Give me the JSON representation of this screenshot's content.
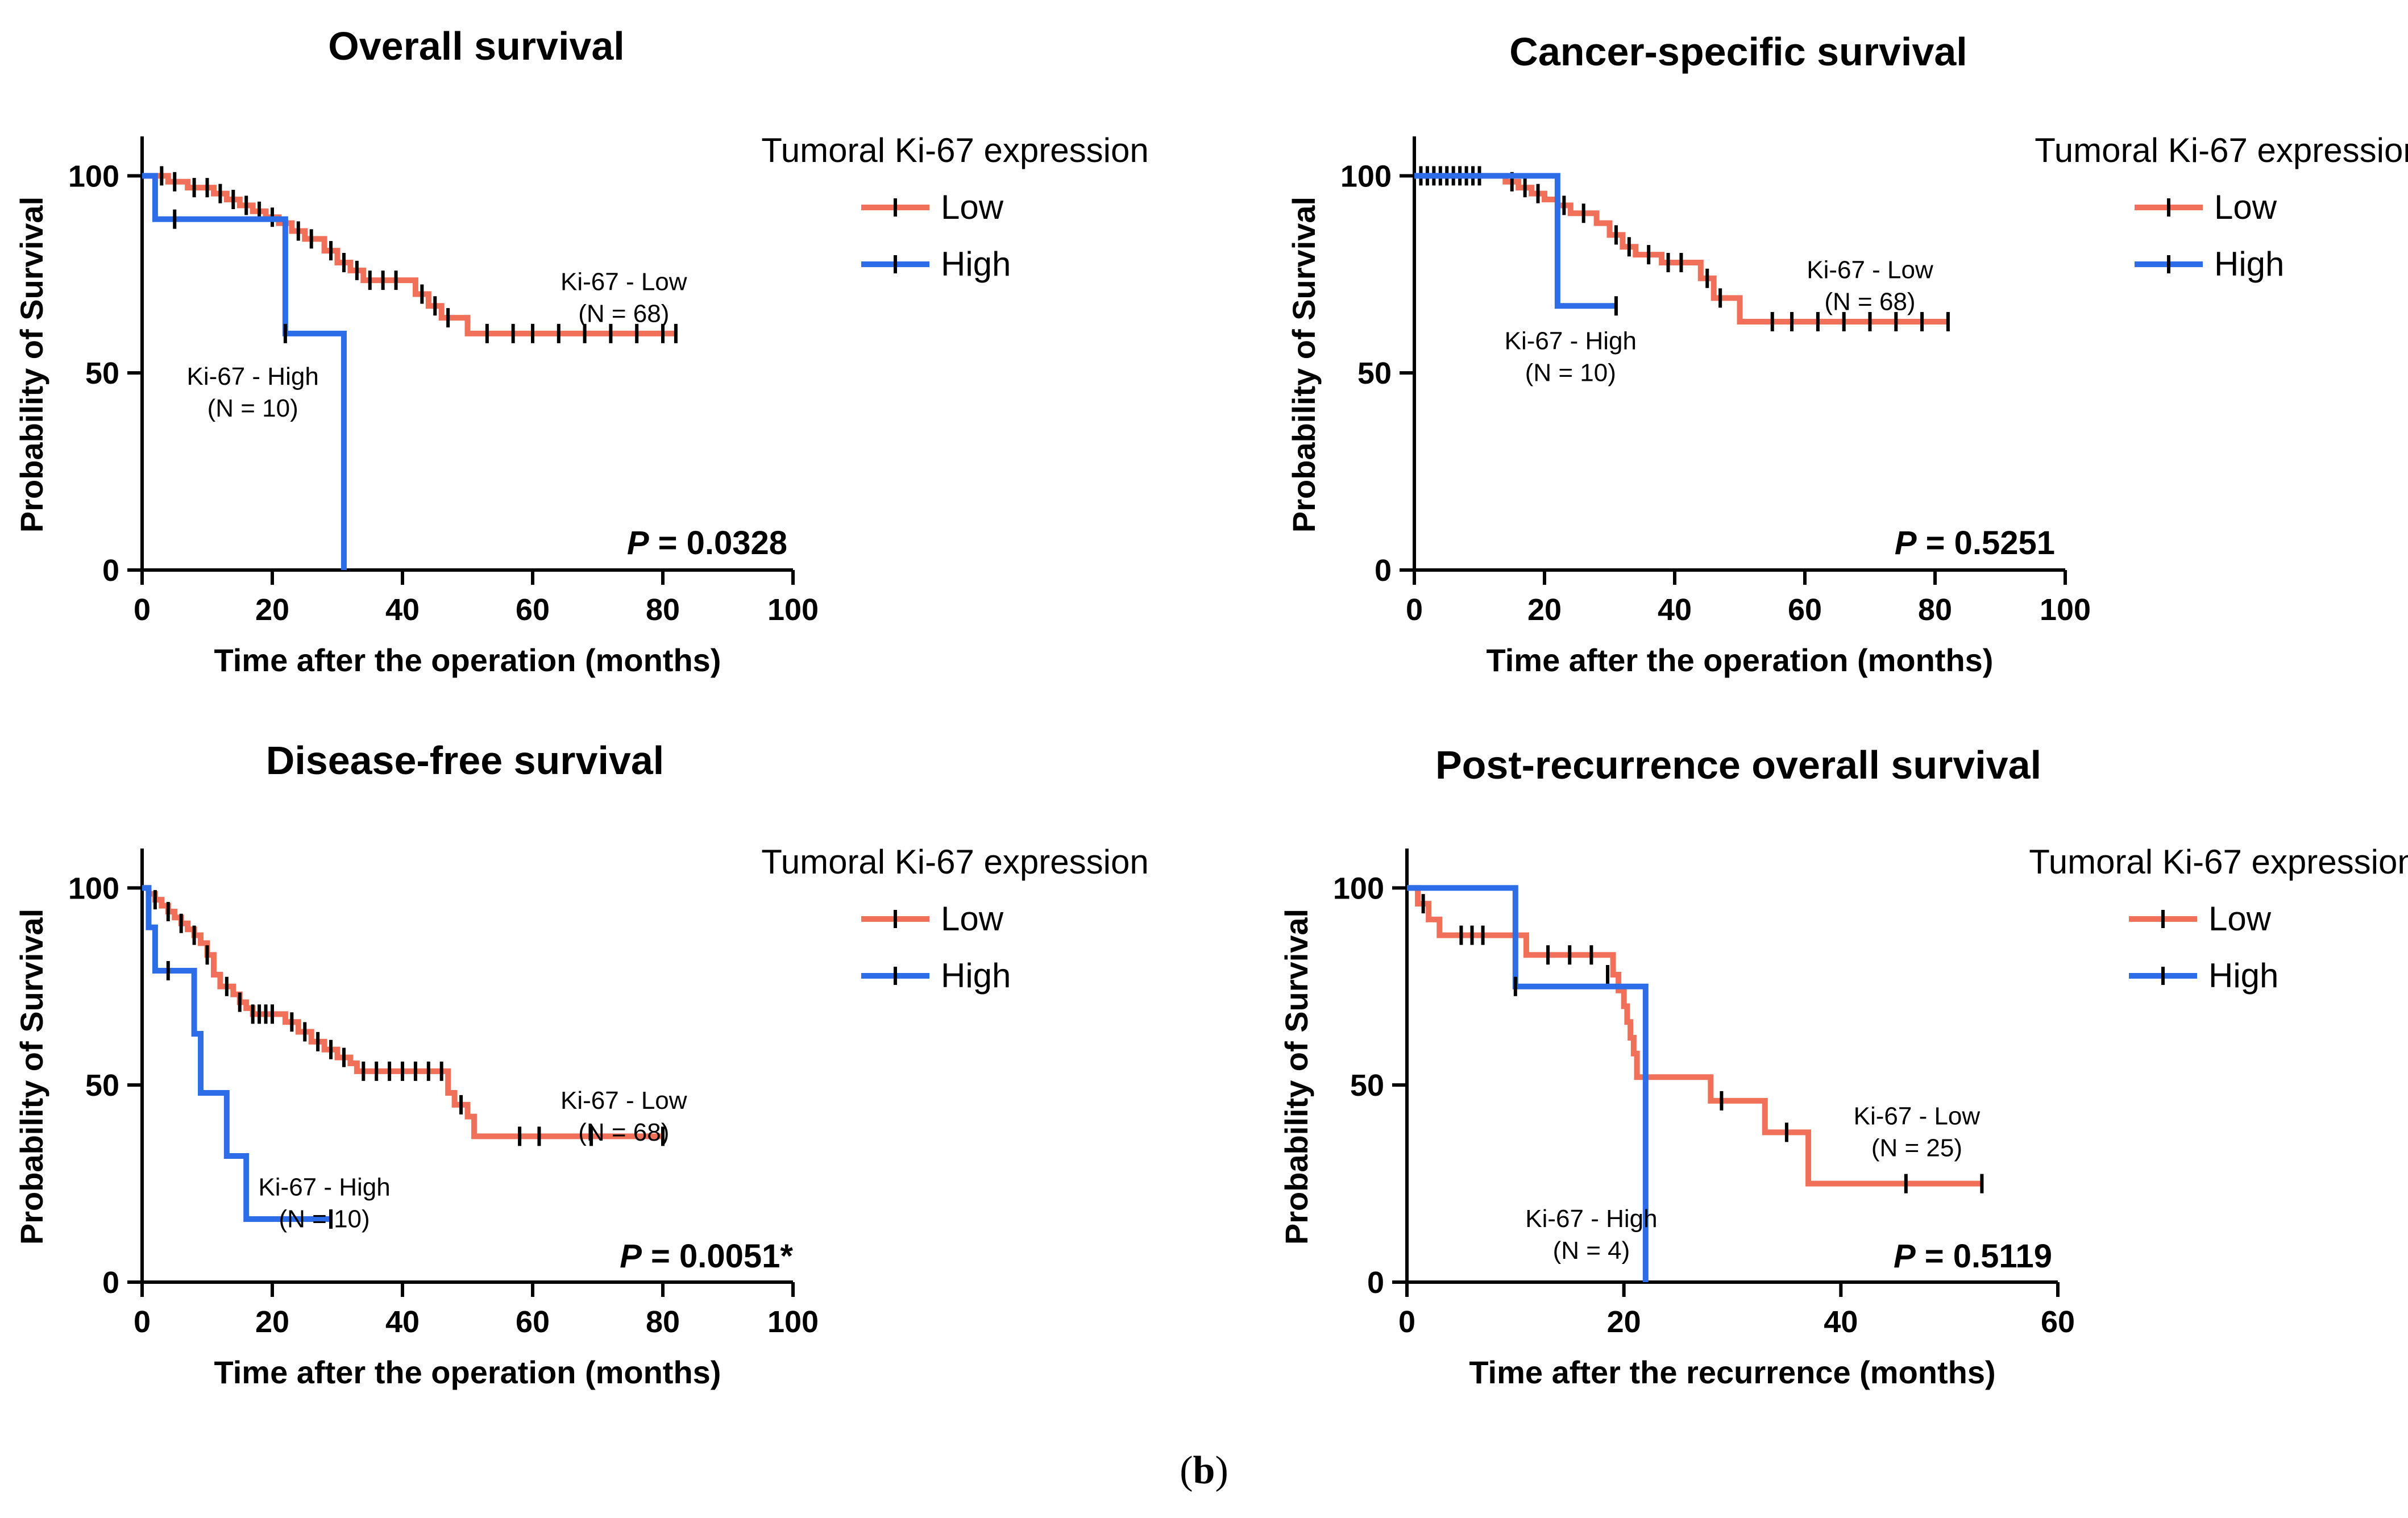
{
  "caption": {
    "open": "(",
    "letter": "b",
    "close": ")"
  },
  "colors": {
    "low": "#f0705a",
    "high": "#2d6ee8",
    "axis": "#000000",
    "censor": "#000000"
  },
  "chart_data": [
    {
      "type": "line",
      "subtype": "kaplan-meier",
      "title": "Overall survival",
      "xlabel": "Time after the operation (months)",
      "ylabel": "Probability of Survival",
      "xlim": [
        0,
        100
      ],
      "ylim": [
        0,
        110
      ],
      "xticks": [
        0,
        20,
        40,
        60,
        80,
        100
      ],
      "yticks": [
        0,
        50,
        100
      ],
      "legend": {
        "title": "Tumoral Ki-67 expression",
        "position": "top-right",
        "entries": [
          "Low",
          "High"
        ]
      },
      "p_value": {
        "label": "P",
        "value": "= 0.0328"
      },
      "series": [
        {
          "name": "Low",
          "key": "low",
          "steps": [
            [
              0,
              100
            ],
            [
              2,
              100
            ],
            [
              4,
              98.5
            ],
            [
              7,
              97
            ],
            [
              9,
              97
            ],
            [
              11,
              95.5
            ],
            [
              13,
              94
            ],
            [
              15,
              92.5
            ],
            [
              17,
              91
            ],
            [
              19,
              89.5
            ],
            [
              21,
              88
            ],
            [
              23,
              86
            ],
            [
              25,
              84
            ],
            [
              28,
              81
            ],
            [
              30,
              78
            ],
            [
              32,
              76
            ],
            [
              34,
              73.5
            ],
            [
              40,
              73.5
            ],
            [
              42,
              70
            ],
            [
              44,
              67
            ],
            [
              46,
              64
            ],
            [
              50,
              60
            ],
            [
              82,
              60
            ]
          ],
          "censors": [
            [
              3,
              100
            ],
            [
              5,
              98.5
            ],
            [
              8,
              97
            ],
            [
              10,
              97
            ],
            [
              12,
              95.5
            ],
            [
              14,
              94
            ],
            [
              16,
              92.5
            ],
            [
              18,
              91
            ],
            [
              20,
              89.5
            ],
            [
              24,
              86
            ],
            [
              26,
              84
            ],
            [
              29,
              81
            ],
            [
              31,
              78
            ],
            [
              33,
              76
            ],
            [
              35,
              73.5
            ],
            [
              37,
              73.5
            ],
            [
              39,
              73.5
            ],
            [
              43,
              70
            ],
            [
              45,
              67
            ],
            [
              47,
              64
            ],
            [
              53,
              60
            ],
            [
              57,
              60
            ],
            [
              60,
              60
            ],
            [
              64,
              60
            ],
            [
              68,
              60
            ],
            [
              72,
              60
            ],
            [
              76,
              60
            ],
            [
              80,
              60
            ],
            [
              82,
              60
            ]
          ],
          "label_lines": [
            "Ki-67 - Low",
            "(N = 68)"
          ],
          "label_pos": [
            74,
            71
          ]
        },
        {
          "name": "High",
          "key": "high",
          "steps": [
            [
              0,
              100
            ],
            [
              2,
              89
            ],
            [
              22,
              89
            ],
            [
              22,
              60
            ],
            [
              31,
              60
            ],
            [
              31,
              0
            ]
          ],
          "censors": [
            [
              5,
              89
            ],
            [
              22,
              60
            ]
          ],
          "label_lines": [
            "Ki-67 - High",
            "(N = 10)"
          ],
          "label_pos": [
            17,
            47
          ]
        }
      ]
    },
    {
      "type": "line",
      "subtype": "kaplan-meier",
      "title": "Cancer-specific survival",
      "xlabel": "Time after the operation (months)",
      "ylabel": "Probability of Survival",
      "xlim": [
        0,
        100
      ],
      "ylim": [
        0,
        110
      ],
      "xticks": [
        0,
        20,
        40,
        60,
        80,
        100
      ],
      "yticks": [
        0,
        50,
        100
      ],
      "legend": {
        "title": "Tumoral Ki-67 expression",
        "position": "top-right",
        "entries": [
          "Low",
          "High"
        ]
      },
      "p_value": {
        "label": "P",
        "value": "= 0.5251"
      },
      "series": [
        {
          "name": "Low",
          "key": "low",
          "steps": [
            [
              0,
              100
            ],
            [
              12,
              100
            ],
            [
              14,
              98.5
            ],
            [
              16,
              97
            ],
            [
              18,
              95.5
            ],
            [
              20,
              94
            ],
            [
              22,
              92.5
            ],
            [
              24,
              90.5
            ],
            [
              28,
              88
            ],
            [
              30,
              85
            ],
            [
              32,
              82
            ],
            [
              34,
              80
            ],
            [
              38,
              78
            ],
            [
              43,
              78
            ],
            [
              44,
              74
            ],
            [
              46,
              69
            ],
            [
              50,
              63
            ],
            [
              82,
              63
            ]
          ],
          "censors": [
            [
              1,
              100
            ],
            [
              2,
              100
            ],
            [
              3,
              100
            ],
            [
              4,
              100
            ],
            [
              5,
              100
            ],
            [
              6,
              100
            ],
            [
              7,
              100
            ],
            [
              8,
              100
            ],
            [
              9,
              100
            ],
            [
              10,
              100
            ],
            [
              15,
              98.5
            ],
            [
              17,
              97
            ],
            [
              19,
              95.5
            ],
            [
              23,
              92.5
            ],
            [
              26,
              90.5
            ],
            [
              31,
              85
            ],
            [
              33,
              82
            ],
            [
              36,
              80
            ],
            [
              39,
              78
            ],
            [
              41,
              78
            ],
            [
              45,
              74
            ],
            [
              47,
              69
            ],
            [
              55,
              63
            ],
            [
              58,
              63
            ],
            [
              62,
              63
            ],
            [
              66,
              63
            ],
            [
              70,
              63
            ],
            [
              74,
              63
            ],
            [
              78,
              63
            ],
            [
              82,
              63
            ]
          ],
          "label_lines": [
            "Ki-67 - Low",
            "(N = 68)"
          ],
          "label_pos": [
            70,
            74
          ]
        },
        {
          "name": "High",
          "key": "high",
          "steps": [
            [
              0,
              100
            ],
            [
              22,
              100
            ],
            [
              22,
              67
            ],
            [
              31,
              67
            ]
          ],
          "censors": [
            [
              31,
              67
            ]
          ],
          "label_lines": [
            "Ki-67 - High",
            "(N = 10)"
          ],
          "label_pos": [
            24,
            56
          ]
        }
      ]
    },
    {
      "type": "line",
      "subtype": "kaplan-meier",
      "title": "Disease-free survival",
      "xlabel": "Time after the operation (months)",
      "ylabel": "Probability of Survival",
      "xlim": [
        0,
        100
      ],
      "ylim": [
        0,
        110
      ],
      "xticks": [
        0,
        20,
        40,
        60,
        80,
        100
      ],
      "yticks": [
        0,
        50,
        100
      ],
      "legend": {
        "title": "Tumoral Ki-67 expression",
        "position": "top-right",
        "entries": [
          "Low",
          "High"
        ]
      },
      "p_value": {
        "label": "P",
        "value": "= 0.0051*"
      },
      "series": [
        {
          "name": "Low",
          "key": "low",
          "steps": [
            [
              0,
              100
            ],
            [
              1,
              98.5
            ],
            [
              2,
              97
            ],
            [
              3,
              95.5
            ],
            [
              4,
              94
            ],
            [
              5,
              92.5
            ],
            [
              6,
              91
            ],
            [
              7,
              89.5
            ],
            [
              8,
              88
            ],
            [
              9,
              86
            ],
            [
              10,
              83
            ],
            [
              11,
              78
            ],
            [
              12,
              75
            ],
            [
              14,
              73
            ],
            [
              15,
              71
            ],
            [
              16,
              69.5
            ],
            [
              17,
              68
            ],
            [
              21,
              68
            ],
            [
              22,
              66
            ],
            [
              24,
              63.5
            ],
            [
              26,
              61
            ],
            [
              28,
              59
            ],
            [
              30,
              57
            ],
            [
              32,
              55.5
            ],
            [
              33,
              53.5
            ],
            [
              47,
              53.5
            ],
            [
              47,
              48
            ],
            [
              48,
              45
            ],
            [
              50,
              42
            ],
            [
              51,
              37
            ],
            [
              80,
              37
            ]
          ],
          "censors": [
            [
              2,
              97
            ],
            [
              4,
              94
            ],
            [
              6,
              91
            ],
            [
              8,
              88
            ],
            [
              10,
              83
            ],
            [
              13,
              75
            ],
            [
              15,
              71
            ],
            [
              17,
              68
            ],
            [
              18,
              68
            ],
            [
              19,
              68
            ],
            [
              20,
              68
            ],
            [
              23,
              66
            ],
            [
              25,
              63.5
            ],
            [
              27,
              61
            ],
            [
              29,
              59
            ],
            [
              31,
              57
            ],
            [
              34,
              53.5
            ],
            [
              36,
              53.5
            ],
            [
              38,
              53.5
            ],
            [
              40,
              53.5
            ],
            [
              42,
              53.5
            ],
            [
              44,
              53.5
            ],
            [
              46,
              53.5
            ],
            [
              49,
              45
            ],
            [
              58,
              37
            ],
            [
              61,
              37
            ],
            [
              69,
              37
            ],
            [
              80,
              37
            ]
          ],
          "label_lines": [
            "Ki-67 - Low",
            "(N = 68)"
          ],
          "label_pos": [
            74,
            44
          ]
        },
        {
          "name": "High",
          "key": "high",
          "steps": [
            [
              0,
              100
            ],
            [
              1,
              90
            ],
            [
              2,
              79
            ],
            [
              7,
              79
            ],
            [
              8,
              63
            ],
            [
              9,
              48
            ],
            [
              12,
              48
            ],
            [
              13,
              32
            ],
            [
              15,
              32
            ],
            [
              16,
              16
            ],
            [
              29,
              16
            ]
          ],
          "censors": [
            [
              4,
              79
            ],
            [
              29,
              16
            ]
          ],
          "label_lines": [
            "Ki-67 - High",
            "(N = 10)"
          ],
          "label_pos": [
            28,
            22
          ]
        }
      ]
    },
    {
      "type": "line",
      "subtype": "kaplan-meier",
      "title": "Post-recurrence overall survival",
      "xlabel": "Time after the recurrence (months)",
      "ylabel": "Probability of Survival",
      "xlim": [
        0,
        60
      ],
      "ylim": [
        0,
        110
      ],
      "xticks": [
        0,
        20,
        40,
        60
      ],
      "yticks": [
        0,
        50,
        100
      ],
      "legend": {
        "title": "Tumoral Ki-67 expression",
        "position": "top-right",
        "entries": [
          "Low",
          "High"
        ]
      },
      "p_value": {
        "label": "P",
        "value": "= 0.5119"
      },
      "series": [
        {
          "name": "Low",
          "key": "low",
          "steps": [
            [
              0,
              100
            ],
            [
              1,
              96
            ],
            [
              2,
              92
            ],
            [
              3,
              88
            ],
            [
              10,
              88
            ],
            [
              11,
              83
            ],
            [
              18,
              83
            ],
            [
              19,
              78
            ],
            [
              19.5,
              74
            ],
            [
              20,
              70
            ],
            [
              20.3,
              66
            ],
            [
              20.6,
              62
            ],
            [
              20.9,
              58
            ],
            [
              21.2,
              52
            ],
            [
              27,
              52
            ],
            [
              28,
              46
            ],
            [
              33,
              46
            ],
            [
              33,
              38
            ],
            [
              37,
              38
            ],
            [
              37,
              25
            ],
            [
              53,
              25
            ]
          ],
          "censors": [
            [
              1.5,
              96
            ],
            [
              5,
              88
            ],
            [
              6,
              88
            ],
            [
              7,
              88
            ],
            [
              13,
              83
            ],
            [
              15,
              83
            ],
            [
              17,
              83
            ],
            [
              18.5,
              78
            ],
            [
              29,
              46
            ],
            [
              35,
              38
            ],
            [
              46,
              25
            ],
            [
              53,
              25
            ]
          ],
          "label_lines": [
            "Ki-67 - Low",
            "(N = 25)"
          ],
          "label_pos": [
            47,
            40
          ]
        },
        {
          "name": "High",
          "key": "high",
          "steps": [
            [
              0,
              100
            ],
            [
              10,
              100
            ],
            [
              10,
              75
            ],
            [
              22,
              75
            ],
            [
              22,
              0
            ]
          ],
          "censors": [
            [
              10,
              75
            ]
          ],
          "label_lines": [
            "Ki-67 - High",
            "(N = 4)"
          ],
          "label_pos": [
            17,
            14
          ]
        }
      ]
    }
  ]
}
